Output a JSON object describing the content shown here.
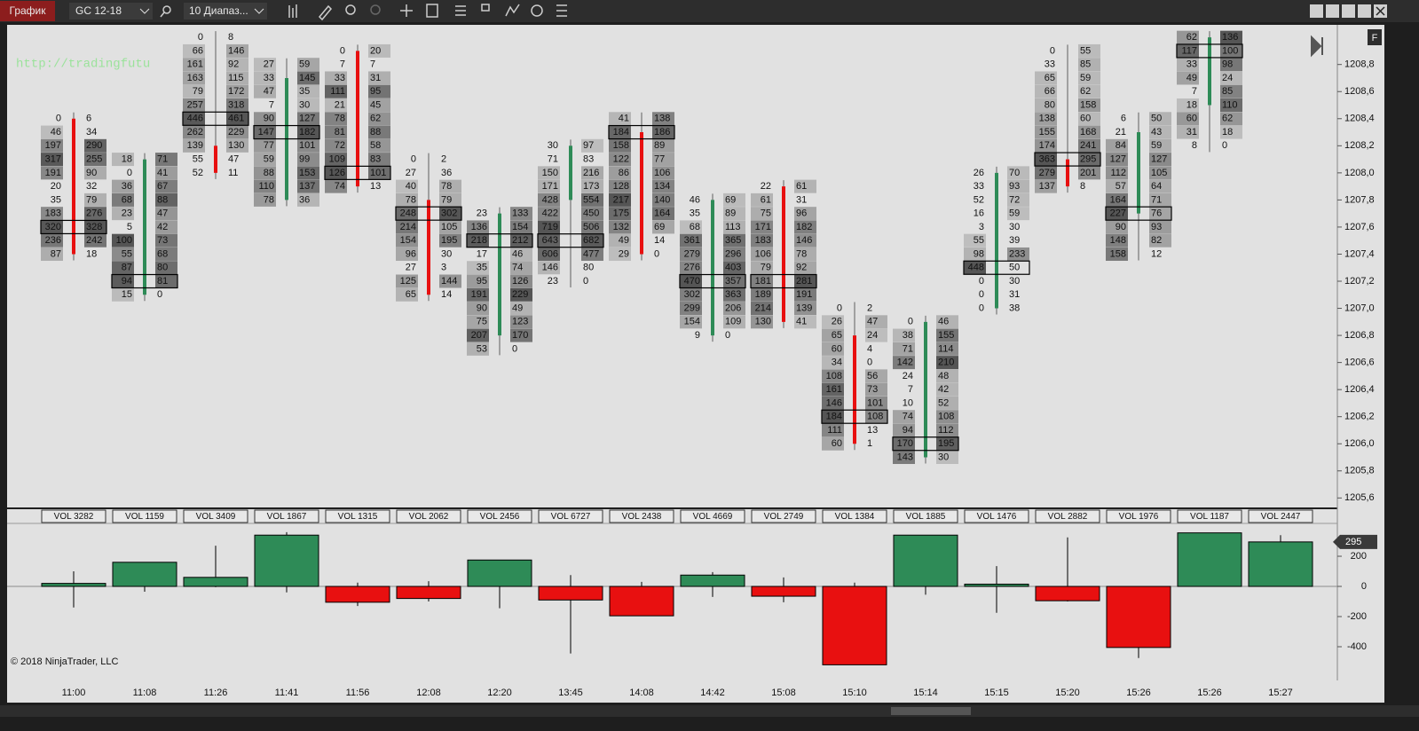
{
  "toolbar": {
    "tab": "График",
    "instrument": "GC 12-18",
    "period": "10 Диапаз...",
    "f_button": "F"
  },
  "chart_data": {
    "type": "footprint",
    "watermark": "http://tradingfutu",
    "copyright": "© 2018 NinjaTrader, LLC",
    "categories": [
      "11:00",
      "11:08",
      "11:26",
      "11:41",
      "11:56",
      "12:08",
      "12:20",
      "13:45",
      "14:08",
      "14:42",
      "15:08",
      "15:10",
      "15:14",
      "15:15",
      "15:20",
      "15:26",
      "15:26",
      "15:27"
    ],
    "ylim": [
      1205.53,
      1209.06
    ],
    "tick_size": 0.1,
    "yticks": [
      {
        "value": 1208.8,
        "label": "1208,8"
      },
      {
        "value": 1208.6,
        "label": "1208,6"
      },
      {
        "value": 1208.4,
        "label": "1208,4"
      },
      {
        "value": 1208.2,
        "label": "1208,2"
      },
      {
        "value": 1208.0,
        "label": "1208,0"
      },
      {
        "value": 1207.8,
        "label": "1207,8"
      },
      {
        "value": 1207.6,
        "label": "1207,6"
      },
      {
        "value": 1207.4,
        "label": "1207,4"
      },
      {
        "value": 1207.2,
        "label": "1207,2"
      },
      {
        "value": 1207.0,
        "label": "1207,0"
      },
      {
        "value": 1206.8,
        "label": "1206,8"
      },
      {
        "value": 1206.6,
        "label": "1206,6"
      },
      {
        "value": 1206.4,
        "label": "1206,4"
      },
      {
        "value": 1206.2,
        "label": "1206,2"
      },
      {
        "value": 1206.0,
        "label": "1206,0"
      },
      {
        "value": 1205.8,
        "label": "1205,8"
      },
      {
        "value": 1205.6,
        "label": "1205,6"
      }
    ],
    "bars": [
      {
        "volume_label": "VOL 3282",
        "high": 1208.4,
        "open": 1208.4,
        "close": 1207.4,
        "poc": 8,
        "rows": [
          [
            0,
            6
          ],
          [
            46,
            34
          ],
          [
            197,
            290
          ],
          [
            317,
            255
          ],
          [
            191,
            90
          ],
          [
            20,
            32
          ],
          [
            35,
            79
          ],
          [
            183,
            276
          ],
          [
            320,
            328
          ],
          [
            236,
            242
          ],
          [
            87,
            18
          ]
        ]
      },
      {
        "volume_label": "VOL 1159",
        "high": 1208.1,
        "open": 1207.1,
        "close": 1208.1,
        "poc": 9,
        "rows": [
          [
            18,
            71
          ],
          [
            0,
            41
          ],
          [
            36,
            67
          ],
          [
            68,
            88
          ],
          [
            23,
            47
          ],
          [
            5,
            42
          ],
          [
            100,
            73
          ],
          [
            55,
            68
          ],
          [
            87,
            80
          ],
          [
            94,
            81
          ],
          [
            15,
            0
          ]
        ]
      },
      {
        "volume_label": "VOL 3409",
        "high": 1209.0,
        "open": 1208.2,
        "close": 1208.0,
        "poc": 6,
        "rows": [
          [
            0,
            8
          ],
          [
            66,
            146
          ],
          [
            161,
            92
          ],
          [
            163,
            115
          ],
          [
            79,
            172
          ],
          [
            257,
            318
          ],
          [
            446,
            461
          ],
          [
            262,
            229
          ],
          [
            139,
            130
          ],
          [
            55,
            47
          ],
          [
            52,
            11
          ]
        ]
      },
      {
        "volume_label": "VOL 1867",
        "high": 1208.8,
        "open": 1207.8,
        "close": 1208.7,
        "poc": 5,
        "rows": [
          [
            27,
            59
          ],
          [
            33,
            145
          ],
          [
            47,
            35
          ],
          [
            7,
            30
          ],
          [
            90,
            127
          ],
          [
            147,
            182
          ],
          [
            77,
            101
          ],
          [
            59,
            99
          ],
          [
            88,
            153
          ],
          [
            110,
            137
          ],
          [
            78,
            36
          ]
        ]
      },
      {
        "volume_label": "VOL 1315",
        "high": 1208.9,
        "open": 1208.9,
        "close": 1207.9,
        "poc": 9,
        "rows": [
          [
            0,
            20
          ],
          [
            7,
            7
          ],
          [
            33,
            31
          ],
          [
            111,
            95
          ],
          [
            21,
            45
          ],
          [
            78,
            62
          ],
          [
            81,
            88
          ],
          [
            72,
            58
          ],
          [
            109,
            83
          ],
          [
            126,
            101
          ],
          [
            74,
            13
          ]
        ]
      },
      {
        "volume_label": "VOL 2062",
        "high": 1208.1,
        "open": 1207.8,
        "close": 1207.1,
        "poc": 4,
        "rows": [
          [
            0,
            2
          ],
          [
            27,
            36
          ],
          [
            40,
            78
          ],
          [
            78,
            79
          ],
          [
            248,
            302
          ],
          [
            214,
            105
          ],
          [
            154,
            195
          ],
          [
            96,
            30
          ],
          [
            27,
            3
          ],
          [
            125,
            144
          ],
          [
            65,
            14
          ]
        ]
      },
      {
        "volume_label": "VOL 2456",
        "high": 1207.7,
        "open": 1206.8,
        "close": 1207.7,
        "poc": 2,
        "rows": [
          [
            23,
            133
          ],
          [
            136,
            154
          ],
          [
            218,
            212
          ],
          [
            17,
            46
          ],
          [
            35,
            74
          ],
          [
            95,
            126
          ],
          [
            191,
            229
          ],
          [
            90,
            49
          ],
          [
            75,
            123
          ],
          [
            207,
            170
          ],
          [
            53,
            0
          ]
        ]
      },
      {
        "volume_label": "VOL 6727",
        "high": 1208.2,
        "open": 1207.8,
        "close": 1208.2,
        "poc": 7,
        "rows": [
          [
            30,
            97
          ],
          [
            71,
            83
          ],
          [
            150,
            216
          ],
          [
            171,
            173
          ],
          [
            428,
            554
          ],
          [
            422,
            450
          ],
          [
            719,
            506
          ],
          [
            643,
            682
          ],
          [
            606,
            477
          ],
          [
            146,
            80
          ],
          [
            23,
            0
          ]
        ]
      },
      {
        "volume_label": "VOL 2438",
        "high": 1208.4,
        "open": 1208.3,
        "close": 1207.4,
        "poc": 1,
        "rows": [
          [
            41,
            138
          ],
          [
            184,
            186
          ],
          [
            158,
            89
          ],
          [
            122,
            77
          ],
          [
            86,
            106
          ],
          [
            128,
            134
          ],
          [
            217,
            140
          ],
          [
            175,
            164
          ],
          [
            132,
            69
          ],
          [
            49,
            14
          ],
          [
            29,
            0
          ]
        ]
      },
      {
        "volume_label": "VOL 4669",
        "high": 1207.8,
        "open": 1206.8,
        "close": 1207.8,
        "poc": 6,
        "rows": [
          [
            46,
            69
          ],
          [
            35,
            89
          ],
          [
            68,
            113
          ],
          [
            361,
            365
          ],
          [
            279,
            296
          ],
          [
            276,
            403
          ],
          [
            470,
            357
          ],
          [
            302,
            363
          ],
          [
            299,
            206
          ],
          [
            154,
            109
          ],
          [
            9,
            0
          ]
        ]
      },
      {
        "volume_label": "VOL 2749",
        "high": 1207.9,
        "open": 1207.9,
        "close": 1206.9,
        "poc": 7,
        "rows": [
          [
            22,
            61
          ],
          [
            61,
            31
          ],
          [
            75,
            96
          ],
          [
            171,
            182
          ],
          [
            183,
            146
          ],
          [
            106,
            78
          ],
          [
            79,
            92
          ],
          [
            181,
            281
          ],
          [
            189,
            191
          ],
          [
            214,
            139
          ],
          [
            130,
            41
          ]
        ]
      },
      {
        "volume_label": "VOL 1384",
        "high": 1207.0,
        "open": 1206.8,
        "close": 1206.0,
        "poc": 8,
        "rows": [
          [
            0,
            2
          ],
          [
            26,
            47
          ],
          [
            65,
            24
          ],
          [
            60,
            4
          ],
          [
            34,
            0
          ],
          [
            108,
            56
          ],
          [
            161,
            73
          ],
          [
            146,
            101
          ],
          [
            184,
            108
          ],
          [
            111,
            13
          ],
          [
            60,
            1
          ]
        ]
      },
      {
        "volume_label": "VOL 1885",
        "high": 1206.9,
        "open": 1205.9,
        "close": 1206.9,
        "poc": 9,
        "rows": [
          [
            0,
            46
          ],
          [
            38,
            155
          ],
          [
            71,
            114
          ],
          [
            142,
            210
          ],
          [
            24,
            48
          ],
          [
            7,
            42
          ],
          [
            10,
            52
          ],
          [
            74,
            108
          ],
          [
            94,
            112
          ],
          [
            170,
            195
          ],
          [
            143,
            30
          ]
        ]
      },
      {
        "volume_label": "VOL 1476",
        "high": 1208.0,
        "open": 1207.0,
        "close": 1208.0,
        "poc": 7,
        "rows": [
          [
            26,
            70
          ],
          [
            33,
            93
          ],
          [
            52,
            72
          ],
          [
            16,
            59
          ],
          [
            3,
            30
          ],
          [
            55,
            39
          ],
          [
            98,
            233
          ],
          [
            448,
            50
          ],
          [
            0,
            30
          ],
          [
            0,
            31
          ],
          [
            0,
            38
          ]
        ]
      },
      {
        "volume_label": "VOL 2882",
        "high": 1208.9,
        "open": 1208.1,
        "close": 1207.9,
        "poc": 8,
        "rows": [
          [
            0,
            55
          ],
          [
            33,
            85
          ],
          [
            65,
            59
          ],
          [
            66,
            62
          ],
          [
            80,
            158
          ],
          [
            138,
            60
          ],
          [
            155,
            168
          ],
          [
            174,
            241
          ],
          [
            363,
            295
          ],
          [
            279,
            201
          ],
          [
            137,
            8
          ]
        ]
      },
      {
        "volume_label": "VOL 1976",
        "high": 1208.4,
        "open": 1207.7,
        "close": 1208.3,
        "poc": 7,
        "rows": [
          [
            6,
            50
          ],
          [
            21,
            43
          ],
          [
            84,
            59
          ],
          [
            127,
            127
          ],
          [
            112,
            105
          ],
          [
            57,
            64
          ],
          [
            164,
            71
          ],
          [
            227,
            76
          ],
          [
            90,
            93
          ],
          [
            148,
            82
          ],
          [
            158,
            12
          ]
        ]
      },
      {
        "volume_label": "VOL 1187",
        "high": 1209.0,
        "open": 1208.5,
        "close": 1209.0,
        "poc": 1,
        "rows": [
          [
            62,
            136
          ],
          [
            117,
            100
          ],
          [
            33,
            98
          ],
          [
            49,
            24
          ],
          [
            7,
            85
          ],
          [
            18,
            110
          ],
          [
            60,
            62
          ],
          [
            31,
            18
          ],
          [
            8,
            0
          ]
        ]
      },
      {
        "volume_label": "VOL 2447",
        "rows": []
      }
    ],
    "delta": {
      "values": [
        20,
        160,
        60,
        340,
        -105,
        -80,
        175,
        -90,
        -195,
        75,
        -65,
        -520,
        340,
        15,
        -95,
        -405,
        355,
        295
      ],
      "highs": [
        100,
        160,
        270,
        360,
        25,
        35,
        175,
        75,
        30,
        95,
        60,
        25,
        340,
        135,
        325,
        0,
        355,
        340
      ],
      "lows": [
        -140,
        -35,
        -5,
        -40,
        -130,
        -100,
        -145,
        -445,
        -195,
        -70,
        -105,
        -520,
        -55,
        -175,
        -100,
        -475,
        355,
        295
      ],
      "ylim": [
        -600,
        406
      ],
      "yticks": [
        200,
        0,
        -200,
        -400
      ],
      "current_label": 295
    }
  }
}
